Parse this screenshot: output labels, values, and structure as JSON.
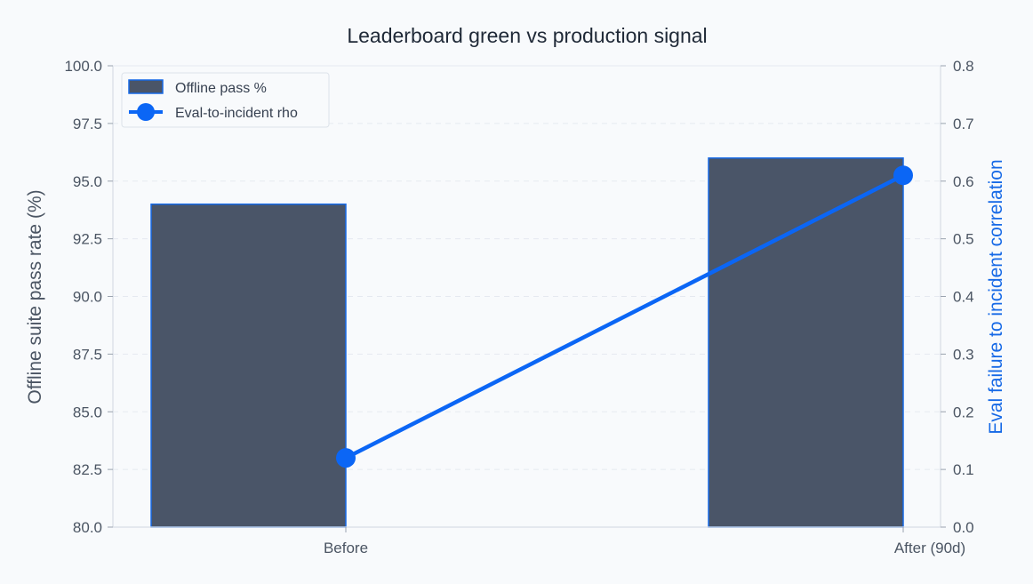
{
  "chart_data": {
    "type": "bar+line",
    "title": "Leaderboard green vs production signal",
    "categories": [
      "Before",
      "After (90d)"
    ],
    "series": [
      {
        "name": "Offline pass %",
        "type": "bar",
        "axis": "left",
        "values": [
          94.0,
          96.0
        ],
        "color": "#4a5568",
        "edge_color": "#1669e6"
      },
      {
        "name": "Eval-to-incident rho",
        "type": "line",
        "axis": "right",
        "values": [
          0.12,
          0.61
        ],
        "color": "#0b66f5"
      }
    ],
    "ylabel_left": "Offline suite pass rate (%)",
    "ylabel_right": "Eval failure to incident correlation",
    "ylim_left": [
      80.0,
      100.0
    ],
    "ylim_right": [
      0.0,
      0.8
    ],
    "yticks_left": [
      "80.0",
      "82.5",
      "85.0",
      "87.5",
      "90.0",
      "92.5",
      "95.0",
      "97.5",
      "100.0"
    ],
    "yticks_right": [
      "0.0",
      "0.1",
      "0.2",
      "0.3",
      "0.4",
      "0.5",
      "0.6",
      "0.7",
      "0.8"
    ],
    "grid": "horizontal dashed",
    "legend_position": "top-left"
  }
}
